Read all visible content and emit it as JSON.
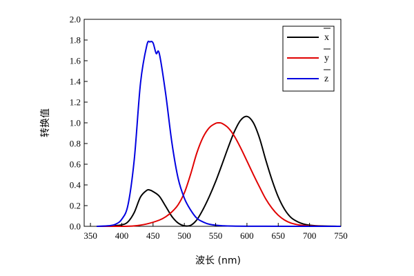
{
  "chart_data": {
    "type": "line",
    "title": "",
    "xlabel": "波长 (nm)",
    "ylabel": "转换值",
    "xlim": [
      340,
      750
    ],
    "ylim": [
      0,
      2.0
    ],
    "xticks": [
      350,
      400,
      450,
      500,
      550,
      600,
      650,
      700,
      750
    ],
    "yticks": [
      "0.0",
      "0.2",
      "0.4",
      "0.6",
      "0.8",
      "1.0",
      "1.2",
      "1.4",
      "1.6",
      "1.8",
      "2.0"
    ],
    "legend_position": "top-right",
    "series": [
      {
        "name": "x",
        "color": "#000000",
        "x": [
          360,
          380,
          400,
          410,
          420,
          430,
          440,
          445,
          450,
          460,
          470,
          480,
          490,
          500,
          510,
          520,
          530,
          540,
          550,
          560,
          570,
          580,
          590,
          600,
          610,
          620,
          630,
          640,
          650,
          660,
          670,
          680,
          690,
          700,
          720,
          750
        ],
        "values": [
          0.0,
          0.002,
          0.014,
          0.044,
          0.134,
          0.284,
          0.348,
          0.35,
          0.336,
          0.291,
          0.195,
          0.096,
          0.032,
          0.005,
          0.009,
          0.063,
          0.165,
          0.29,
          0.433,
          0.595,
          0.762,
          0.916,
          1.026,
          1.062,
          1.003,
          0.854,
          0.642,
          0.448,
          0.284,
          0.165,
          0.087,
          0.047,
          0.023,
          0.011,
          0.003,
          0.0
        ]
      },
      {
        "name": "y",
        "color": "#e00000",
        "x": [
          360,
          380,
          400,
          420,
          440,
          460,
          470,
          480,
          490,
          500,
          510,
          520,
          530,
          540,
          550,
          555,
          560,
          570,
          580,
          590,
          600,
          610,
          620,
          630,
          640,
          650,
          660,
          670,
          680,
          690,
          700,
          720,
          750
        ],
        "values": [
          0.0,
          0.0,
          0.0,
          0.004,
          0.023,
          0.06,
          0.091,
          0.139,
          0.208,
          0.323,
          0.503,
          0.71,
          0.862,
          0.954,
          0.995,
          1.0,
          0.995,
          0.952,
          0.87,
          0.757,
          0.631,
          0.503,
          0.381,
          0.265,
          0.175,
          0.107,
          0.061,
          0.032,
          0.017,
          0.008,
          0.004,
          0.001,
          0.0
        ]
      },
      {
        "name": "z",
        "color": "#0000e0",
        "x": [
          360,
          380,
          390,
          400,
          410,
          420,
          430,
          440,
          445,
          450,
          455,
          460,
          470,
          480,
          490,
          500,
          510,
          520,
          530,
          540,
          560,
          600,
          750
        ],
        "values": [
          0.0,
          0.006,
          0.02,
          0.068,
          0.207,
          0.646,
          1.386,
          1.747,
          1.782,
          1.772,
          1.67,
          1.669,
          1.288,
          0.813,
          0.465,
          0.272,
          0.158,
          0.078,
          0.042,
          0.02,
          0.006,
          0.001,
          0.0
        ]
      }
    ]
  }
}
